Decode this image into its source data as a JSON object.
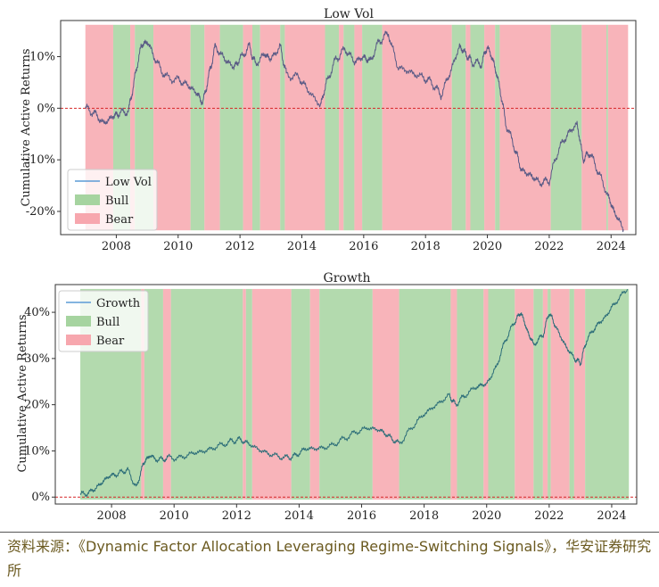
{
  "source_note": "资料来源：《Dynamic Factor Allocation Leveraging Regime-Switching Signals》，华安证券研究所",
  "colors": {
    "bull": "#a6d4a0",
    "bear": "#f7a7ae",
    "line_low": "#5a5b86",
    "line_growth": "#2d6e79",
    "zero": "#d62728",
    "legend_line": "#5b9bd5"
  },
  "chart_data": [
    {
      "type": "line",
      "title": "Low Vol",
      "ylabel": "Cumulative Active Returns",
      "xlabel": "",
      "xlim": [
        2006.2,
        2024.8
      ],
      "ylim": [
        -24.5,
        17.0
      ],
      "y_ticks": [
        10,
        0,
        -10,
        -20
      ],
      "y_tick_labels": [
        "10%",
        "0%",
        "-10%",
        "-20%"
      ],
      "x_ticks": [
        2008,
        2010,
        2012,
        2014,
        2016,
        2018,
        2020,
        2022,
        2024
      ],
      "x_tick_labels": [
        "2008",
        "2010",
        "2012",
        "2014",
        "2016",
        "2018",
        "2020",
        "2022",
        "2024"
      ],
      "legend": {
        "position": "lower-left",
        "entries": [
          "Low Vol",
          "Bull",
          "Bear"
        ]
      },
      "series": [
        {
          "name": "Low Vol",
          "x": [
            2007.0,
            2007.3,
            2007.6,
            2007.9,
            2008.1,
            2008.4,
            2008.6,
            2008.8,
            2009.0,
            2009.3,
            2009.6,
            2010.0,
            2010.3,
            2010.6,
            2010.8,
            2011.0,
            2011.2,
            2011.5,
            2011.8,
            2012.0,
            2012.3,
            2012.5,
            2012.8,
            2013.0,
            2013.3,
            2013.5,
            2013.9,
            2014.2,
            2014.6,
            2014.8,
            2015.1,
            2015.4,
            2015.7,
            2016.0,
            2016.2,
            2016.5,
            2016.8,
            2017.1,
            2017.5,
            2017.9,
            2018.2,
            2018.5,
            2018.8,
            2019.1,
            2019.3,
            2019.5,
            2019.8,
            2020.0,
            2020.2,
            2020.4,
            2020.6,
            2020.9,
            2021.1,
            2021.4,
            2021.7,
            2022.0,
            2022.3,
            2022.6,
            2022.9,
            2023.1,
            2023.3,
            2023.6,
            2023.9,
            2024.1,
            2024.4
          ],
          "values": [
            0.0,
            -1.0,
            -3.0,
            -1.5,
            -1.0,
            -0.5,
            6.0,
            12.0,
            13.0,
            9.0,
            6.0,
            5.5,
            4.5,
            3.0,
            1.0,
            6.5,
            12.0,
            9.5,
            8.0,
            9.5,
            12.0,
            8.5,
            10.5,
            9.5,
            12.0,
            6.5,
            6.0,
            3.5,
            0.5,
            5.0,
            9.5,
            11.5,
            9.0,
            10.0,
            9.0,
            13.0,
            14.5,
            8.0,
            7.0,
            6.0,
            5.0,
            2.5,
            7.0,
            12.0,
            10.5,
            9.0,
            8.5,
            12.0,
            9.0,
            4.0,
            -3.0,
            -8.0,
            -12.0,
            -13.0,
            -14.5,
            -14.0,
            -8.0,
            -5.0,
            -3.0,
            -10.0,
            -8.5,
            -12.5,
            -17.0,
            -20.0,
            -23.5
          ]
        }
      ],
      "regimes": [
        {
          "start": 2007.0,
          "end": 2007.9,
          "regime": "Bear"
        },
        {
          "start": 2007.9,
          "end": 2008.45,
          "regime": "Bull"
        },
        {
          "start": 2008.45,
          "end": 2008.6,
          "regime": "Bear"
        },
        {
          "start": 2008.6,
          "end": 2009.2,
          "regime": "Bull"
        },
        {
          "start": 2009.2,
          "end": 2010.4,
          "regime": "Bear"
        },
        {
          "start": 2010.4,
          "end": 2010.85,
          "regime": "Bull"
        },
        {
          "start": 2010.85,
          "end": 2011.35,
          "regime": "Bear"
        },
        {
          "start": 2011.35,
          "end": 2012.1,
          "regime": "Bull"
        },
        {
          "start": 2012.1,
          "end": 2012.4,
          "regime": "Bear"
        },
        {
          "start": 2012.4,
          "end": 2012.65,
          "regime": "Bull"
        },
        {
          "start": 2012.65,
          "end": 2013.3,
          "regime": "Bear"
        },
        {
          "start": 2013.3,
          "end": 2013.45,
          "regime": "Bull"
        },
        {
          "start": 2013.45,
          "end": 2014.75,
          "regime": "Bear"
        },
        {
          "start": 2014.75,
          "end": 2015.2,
          "regime": "Bull"
        },
        {
          "start": 2015.2,
          "end": 2015.35,
          "regime": "Bear"
        },
        {
          "start": 2015.35,
          "end": 2015.7,
          "regime": "Bull"
        },
        {
          "start": 2015.7,
          "end": 2015.95,
          "regime": "Bear"
        },
        {
          "start": 2015.95,
          "end": 2016.6,
          "regime": "Bull"
        },
        {
          "start": 2016.6,
          "end": 2018.85,
          "regime": "Bear"
        },
        {
          "start": 2018.85,
          "end": 2019.3,
          "regime": "Bull"
        },
        {
          "start": 2019.3,
          "end": 2019.45,
          "regime": "Bear"
        },
        {
          "start": 2019.45,
          "end": 2019.9,
          "regime": "Bull"
        },
        {
          "start": 2019.9,
          "end": 2020.25,
          "regime": "Bear"
        },
        {
          "start": 2020.25,
          "end": 2020.4,
          "regime": "Bull"
        },
        {
          "start": 2020.4,
          "end": 2022.05,
          "regime": "Bear"
        },
        {
          "start": 2022.05,
          "end": 2023.05,
          "regime": "Bull"
        },
        {
          "start": 2023.05,
          "end": 2023.85,
          "regime": "Bear"
        },
        {
          "start": 2023.85,
          "end": 2023.9,
          "regime": "Bull"
        },
        {
          "start": 2023.9,
          "end": 2024.55,
          "regime": "Bear"
        }
      ]
    },
    {
      "type": "line",
      "title": "Growth",
      "ylabel": "Cumulative Active Returns",
      "xlabel": "",
      "xlim": [
        2006.2,
        2024.8
      ],
      "ylim": [
        -1.5,
        46.0
      ],
      "y_ticks": [
        40,
        30,
        20,
        10,
        0
      ],
      "y_tick_labels": [
        "40%",
        "30%",
        "20%",
        "10%",
        "0%"
      ],
      "x_ticks": [
        2008,
        2010,
        2012,
        2014,
        2016,
        2018,
        2020,
        2022,
        2024
      ],
      "x_tick_labels": [
        "2008",
        "2010",
        "2012",
        "2014",
        "2016",
        "2018",
        "2020",
        "2022",
        "2024"
      ],
      "legend": {
        "position": "upper-left",
        "entries": [
          "Growth",
          "Bull",
          "Bear"
        ]
      },
      "series": [
        {
          "name": "Growth",
          "x": [
            2007.0,
            2007.3,
            2007.6,
            2007.9,
            2008.2,
            2008.5,
            2008.8,
            2009.0,
            2009.2,
            2009.5,
            2009.8,
            2010.2,
            2010.6,
            2011.0,
            2011.4,
            2011.8,
            2012.1,
            2012.4,
            2012.8,
            2013.2,
            2013.6,
            2013.9,
            2014.2,
            2014.6,
            2015.0,
            2015.4,
            2015.8,
            2016.2,
            2016.6,
            2016.9,
            2017.2,
            2017.6,
            2018.0,
            2018.4,
            2018.8,
            2019.0,
            2019.3,
            2019.7,
            2020.0,
            2020.3,
            2020.6,
            2020.9,
            2021.1,
            2021.3,
            2021.5,
            2021.8,
            2022.0,
            2022.2,
            2022.5,
            2022.8,
            2023.0,
            2023.2,
            2023.5,
            2023.8,
            2024.1,
            2024.5
          ],
          "values": [
            0.5,
            1.0,
            2.5,
            4.5,
            5.0,
            6.0,
            2.0,
            7.0,
            9.0,
            8.0,
            8.5,
            8.5,
            9.5,
            10.0,
            11.0,
            12.0,
            12.5,
            11.5,
            10.0,
            9.0,
            8.5,
            9.0,
            10.5,
            10.5,
            11.0,
            12.5,
            14.0,
            15.0,
            14.5,
            13.0,
            11.5,
            15.0,
            18.0,
            20.0,
            22.0,
            20.0,
            22.0,
            24.0,
            24.5,
            28.0,
            34.0,
            38.0,
            40.0,
            36.0,
            33.0,
            35.0,
            40.0,
            37.0,
            33.0,
            30.0,
            29.0,
            34.0,
            37.0,
            39.0,
            42.0,
            45.0
          ]
        }
      ],
      "regimes": [
        {
          "start": 2007.0,
          "end": 2008.95,
          "regime": "Bull"
        },
        {
          "start": 2008.95,
          "end": 2009.05,
          "regime": "Bear"
        },
        {
          "start": 2009.05,
          "end": 2009.65,
          "regime": "Bull"
        },
        {
          "start": 2009.65,
          "end": 2009.9,
          "regime": "Bear"
        },
        {
          "start": 2009.9,
          "end": 2012.2,
          "regime": "Bull"
        },
        {
          "start": 2012.2,
          "end": 2012.3,
          "regime": "Bear"
        },
        {
          "start": 2012.3,
          "end": 2012.5,
          "regime": "Bull"
        },
        {
          "start": 2012.5,
          "end": 2013.75,
          "regime": "Bear"
        },
        {
          "start": 2013.75,
          "end": 2014.35,
          "regime": "Bull"
        },
        {
          "start": 2014.35,
          "end": 2014.65,
          "regime": "Bear"
        },
        {
          "start": 2014.65,
          "end": 2016.35,
          "regime": "Bull"
        },
        {
          "start": 2016.35,
          "end": 2017.2,
          "regime": "Bear"
        },
        {
          "start": 2017.2,
          "end": 2018.85,
          "regime": "Bull"
        },
        {
          "start": 2018.85,
          "end": 2019.05,
          "regime": "Bear"
        },
        {
          "start": 2019.05,
          "end": 2019.9,
          "regime": "Bull"
        },
        {
          "start": 2019.9,
          "end": 2020.05,
          "regime": "Bear"
        },
        {
          "start": 2020.05,
          "end": 2020.9,
          "regime": "Bull"
        },
        {
          "start": 2020.9,
          "end": 2021.5,
          "regime": "Bear"
        },
        {
          "start": 2021.5,
          "end": 2021.8,
          "regime": "Bull"
        },
        {
          "start": 2021.8,
          "end": 2021.95,
          "regime": "Bear"
        },
        {
          "start": 2021.95,
          "end": 2022.05,
          "regime": "Bull"
        },
        {
          "start": 2022.05,
          "end": 2022.65,
          "regime": "Bear"
        },
        {
          "start": 2022.65,
          "end": 2022.8,
          "regime": "Bull"
        },
        {
          "start": 2022.8,
          "end": 2023.15,
          "regime": "Bear"
        },
        {
          "start": 2023.15,
          "end": 2024.55,
          "regime": "Bull"
        }
      ]
    }
  ]
}
